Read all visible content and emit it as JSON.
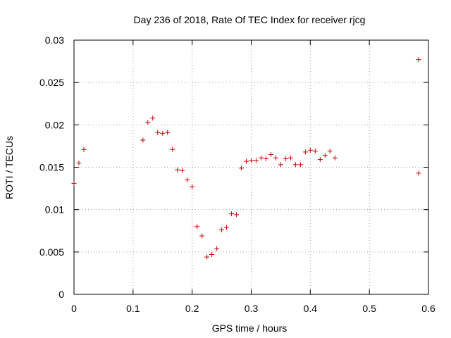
{
  "chart_data": {
    "type": "scatter",
    "title": "Day 236 of 2018, Rate Of TEC Index for receiver rjcg",
    "xlabel": "GPS time / hours",
    "ylabel": "ROTI / TECUs",
    "xlim": [
      0,
      0.6
    ],
    "ylim": [
      0,
      0.03
    ],
    "xticks": [
      0,
      0.1,
      0.2,
      0.3,
      0.4,
      0.5,
      0.6
    ],
    "xtick_labels": [
      "0",
      "0.1",
      "0.2",
      "0.3",
      "0.4",
      "0.5",
      "0.6"
    ],
    "yticks": [
      0,
      0.005,
      0.01,
      0.015,
      0.02,
      0.025,
      0.03
    ],
    "ytick_labels": [
      "0",
      "0.005",
      "0.01",
      "0.015",
      "0.02",
      "0.025",
      "0.03"
    ],
    "grid": true,
    "marker": "+",
    "color": "#cc0000",
    "series": [
      {
        "name": "ROTI",
        "x": [
          0.0,
          0.0083,
          0.0167,
          0.1167,
          0.125,
          0.1333,
          0.1417,
          0.15,
          0.1583,
          0.1667,
          0.175,
          0.1833,
          0.1917,
          0.2,
          0.2083,
          0.2167,
          0.225,
          0.2333,
          0.2417,
          0.25,
          0.2583,
          0.2667,
          0.275,
          0.2833,
          0.2917,
          0.3,
          0.3083,
          0.3167,
          0.325,
          0.3333,
          0.3417,
          0.35,
          0.3583,
          0.3667,
          0.375,
          0.3833,
          0.3917,
          0.4,
          0.4083,
          0.4167,
          0.425,
          0.4333,
          0.4417,
          0.5833,
          0.5833
        ],
        "y": [
          0.0131,
          0.0155,
          0.0171,
          0.0182,
          0.0203,
          0.0208,
          0.0191,
          0.019,
          0.0191,
          0.0171,
          0.0147,
          0.0146,
          0.0135,
          0.0127,
          0.008,
          0.0069,
          0.0044,
          0.0047,
          0.0054,
          0.0076,
          0.0079,
          0.0095,
          0.0094,
          0.0149,
          0.0157,
          0.0158,
          0.0158,
          0.0161,
          0.016,
          0.0165,
          0.0161,
          0.0153,
          0.016,
          0.0161,
          0.0153,
          0.0153,
          0.0168,
          0.017,
          0.0169,
          0.0159,
          0.0164,
          0.0169,
          0.0161,
          0.0277,
          0.0143
        ]
      }
    ]
  }
}
